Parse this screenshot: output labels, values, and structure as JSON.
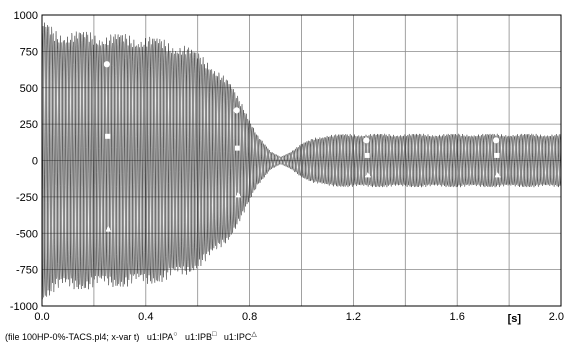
{
  "chart_data": {
    "type": "line",
    "title": "",
    "xlabel": "",
    "ylabel": "",
    "x_unit": "[s]",
    "xlim": [
      0.0,
      2.0
    ],
    "ylim": [
      -1000,
      1000
    ],
    "x_ticks": [
      0.0,
      0.4,
      0.8,
      1.2,
      1.6,
      2.0
    ],
    "x_tick_labels": [
      "0.0",
      "0.4",
      "0.8",
      "1.2",
      "1.6",
      "2.0"
    ],
    "y_ticks": [
      1000,
      750,
      500,
      250,
      0,
      -250,
      -500,
      -750,
      -1000
    ],
    "y_tick_labels": [
      "1000",
      "750",
      "500",
      "250",
      "0",
      "-250",
      "-500",
      "-750",
      "-1000"
    ],
    "grid": true,
    "legend": "bottom-left caption",
    "frequency_hz": 60,
    "envelope": {
      "t": [
        0.0,
        0.05,
        0.2,
        0.4,
        0.55,
        0.65,
        0.72,
        0.78,
        0.83,
        0.88,
        0.92,
        0.96,
        1.0,
        1.05,
        1.1,
        1.2,
        1.5,
        2.0
      ],
      "amplitude": [
        920,
        860,
        840,
        820,
        760,
        650,
        520,
        350,
        170,
        60,
        25,
        60,
        110,
        150,
        170,
        175,
        175,
        175
      ]
    },
    "series": [
      {
        "name": "u1:IPA",
        "marker": "circle",
        "phase_deg": 0
      },
      {
        "name": "u1:IPB",
        "marker": "square",
        "phase_deg": -120
      },
      {
        "name": "u1:IPC",
        "marker": "triangle",
        "phase_deg": 120
      }
    ]
  },
  "caption": {
    "file": "(file 100HP-0%-TACS.pl4; x-var t)",
    "series_labels": [
      "u1:IPA",
      "u1:IPB",
      "u1:IPC"
    ],
    "series_markers": [
      "○",
      "□",
      "△"
    ]
  }
}
